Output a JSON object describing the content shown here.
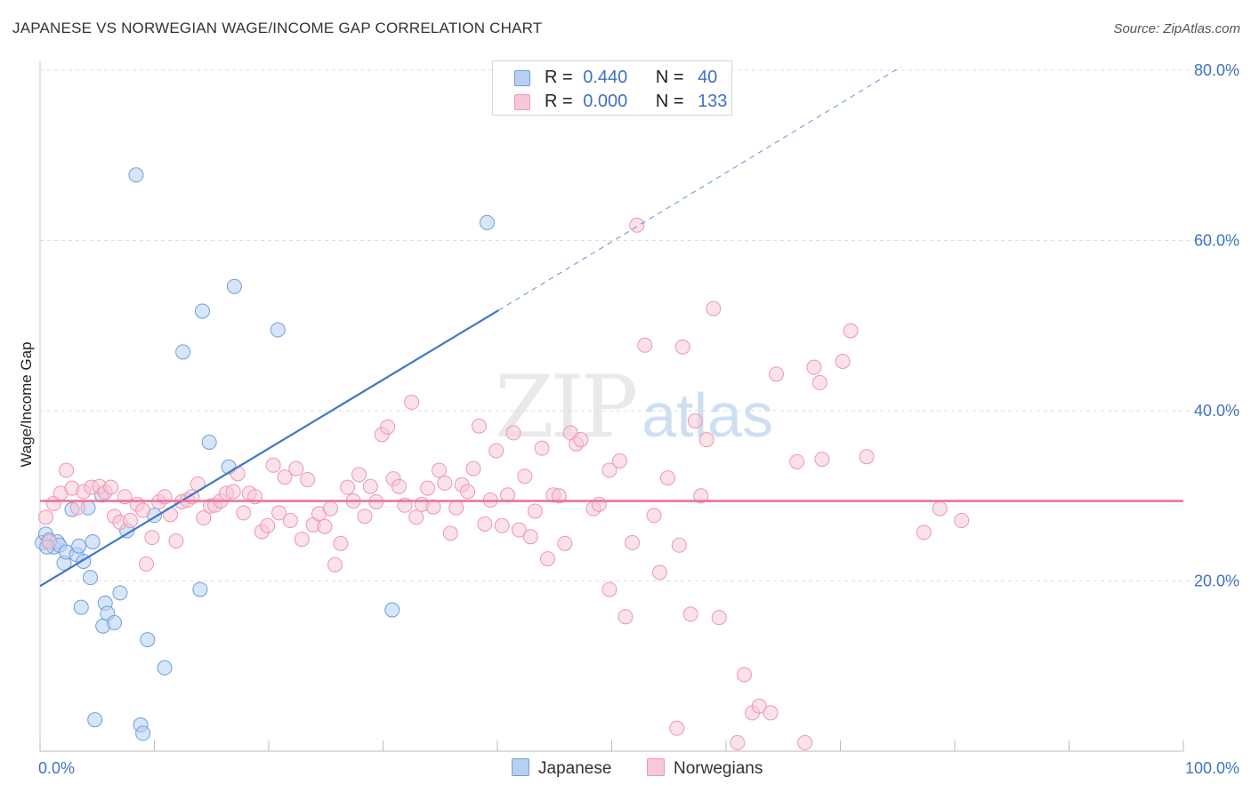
{
  "title": "JAPANESE VS NORWEGIAN WAGE/INCOME GAP CORRELATION CHART",
  "source": "Source: ZipAtlas.com",
  "watermark": {
    "zip": "ZIP",
    "atlas": "atlas"
  },
  "colors": {
    "japanese_fill": "#b7d0f2",
    "japanese_stroke": "#6f9edb",
    "japanese_line": "#3a78cc",
    "norwegian_fill": "#f8c8d6",
    "norwegian_stroke": "#ec97b2",
    "norwegian_line": "#e8709a",
    "axis_label": "#3f72c4",
    "grid": "#dddddd"
  },
  "legend_top": [
    {
      "r_label": "R =",
      "r_value": "0.440",
      "n_label": "N =",
      "n_value": "40",
      "series": "japanese"
    },
    {
      "r_label": "R =",
      "r_value": "0.000",
      "n_label": "N =",
      "n_value": "133",
      "series": "norwegian"
    }
  ],
  "legend_bottom": [
    {
      "label": "Japanese"
    },
    {
      "label": "Norwegians"
    }
  ],
  "chart_data": {
    "type": "scatter",
    "title": "JAPANESE VS NORWEGIAN WAGE/INCOME GAP CORRELATION CHART",
    "xlabel": "",
    "ylabel": "Wage/Income Gap",
    "xlim": [
      0,
      100
    ],
    "ylim": [
      0,
      80
    ],
    "x_tick_labels": [
      "0.0%",
      "100.0%"
    ],
    "y_ticks": [
      20,
      40,
      60,
      80
    ],
    "y_tick_labels": [
      "20.0%",
      "40.0%",
      "60.0%",
      "80.0%"
    ],
    "grid": true,
    "series": [
      {
        "name": "Japanese",
        "stats": {
          "R": 0.44,
          "N": 40
        },
        "trend": {
          "x0": 0,
          "y0": 19.4,
          "x1": 40.1,
          "y1": 51.8,
          "dashed_to_x": 75.3,
          "dashed_to_y": 80.4
        },
        "points": [
          [
            0.2,
            24.5
          ],
          [
            0.5,
            25.5
          ],
          [
            0.8,
            24.8
          ],
          [
            1.2,
            24.0
          ],
          [
            1.5,
            24.6
          ],
          [
            1.7,
            24.2
          ],
          [
            2.1,
            22.1
          ],
          [
            2.3,
            23.4
          ],
          [
            2.8,
            28.4
          ],
          [
            3.2,
            23.1
          ],
          [
            3.4,
            24.1
          ],
          [
            3.6,
            16.9
          ],
          [
            3.8,
            22.3
          ],
          [
            4.2,
            28.6
          ],
          [
            4.4,
            20.4
          ],
          [
            4.6,
            24.6
          ],
          [
            4.8,
            3.7
          ],
          [
            5.4,
            30.1
          ],
          [
            5.5,
            14.7
          ],
          [
            5.7,
            17.4
          ],
          [
            5.9,
            16.2
          ],
          [
            6.5,
            15.1
          ],
          [
            7.0,
            18.6
          ],
          [
            7.6,
            25.9
          ],
          [
            8.4,
            67.7
          ],
          [
            8.8,
            3.1
          ],
          [
            9.0,
            2.1
          ],
          [
            9.4,
            13.1
          ],
          [
            10.0,
            27.7
          ],
          [
            10.9,
            9.8
          ],
          [
            12.5,
            46.9
          ],
          [
            14.0,
            19.0
          ],
          [
            14.2,
            51.7
          ],
          [
            14.8,
            36.3
          ],
          [
            16.5,
            33.4
          ],
          [
            17.0,
            54.6
          ],
          [
            20.8,
            49.5
          ],
          [
            30.8,
            16.6
          ],
          [
            39.1,
            62.1
          ],
          [
            0.6,
            24.0
          ]
        ]
      },
      {
        "name": "Norwegians",
        "stats": {
          "R": 0.0,
          "N": 133
        },
        "trend": {
          "x0": 0,
          "y0": 29.4,
          "x1": 100,
          "y1": 29.4
        },
        "points": [
          [
            0.5,
            27.5
          ],
          [
            0.8,
            24.6
          ],
          [
            1.2,
            29.1
          ],
          [
            1.8,
            30.3
          ],
          [
            2.3,
            33.0
          ],
          [
            2.8,
            30.9
          ],
          [
            3.3,
            28.6
          ],
          [
            3.8,
            30.5
          ],
          [
            4.5,
            31.0
          ],
          [
            5.2,
            31.1
          ],
          [
            5.7,
            30.4
          ],
          [
            6.2,
            31.0
          ],
          [
            6.5,
            27.6
          ],
          [
            7.0,
            26.9
          ],
          [
            7.4,
            29.9
          ],
          [
            7.9,
            27.1
          ],
          [
            8.5,
            29.0
          ],
          [
            9.0,
            28.3
          ],
          [
            9.3,
            22.0
          ],
          [
            9.8,
            25.1
          ],
          [
            10.4,
            29.3
          ],
          [
            10.9,
            29.9
          ],
          [
            11.4,
            27.8
          ],
          [
            11.9,
            24.7
          ],
          [
            12.4,
            29.3
          ],
          [
            12.9,
            29.5
          ],
          [
            13.3,
            29.9
          ],
          [
            13.8,
            31.4
          ],
          [
            14.3,
            27.4
          ],
          [
            14.9,
            28.8
          ],
          [
            15.3,
            28.9
          ],
          [
            15.8,
            29.4
          ],
          [
            16.3,
            30.3
          ],
          [
            16.9,
            30.5
          ],
          [
            17.3,
            32.6
          ],
          [
            17.8,
            28.0
          ],
          [
            18.3,
            30.3
          ],
          [
            18.8,
            29.9
          ],
          [
            19.4,
            25.8
          ],
          [
            19.9,
            26.5
          ],
          [
            20.4,
            33.6
          ],
          [
            20.9,
            28.0
          ],
          [
            21.4,
            32.2
          ],
          [
            21.9,
            27.1
          ],
          [
            22.4,
            33.2
          ],
          [
            22.9,
            24.9
          ],
          [
            23.4,
            31.9
          ],
          [
            23.9,
            26.6
          ],
          [
            24.4,
            27.9
          ],
          [
            24.9,
            26.4
          ],
          [
            25.4,
            28.5
          ],
          [
            25.8,
            21.9
          ],
          [
            26.3,
            24.4
          ],
          [
            26.9,
            31.0
          ],
          [
            27.4,
            29.4
          ],
          [
            27.9,
            32.5
          ],
          [
            28.4,
            27.6
          ],
          [
            28.9,
            31.1
          ],
          [
            29.4,
            29.3
          ],
          [
            29.9,
            37.2
          ],
          [
            30.4,
            38.1
          ],
          [
            30.9,
            32.0
          ],
          [
            31.4,
            31.1
          ],
          [
            31.9,
            28.9
          ],
          [
            32.5,
            41.0
          ],
          [
            32.9,
            27.5
          ],
          [
            33.4,
            29.0
          ],
          [
            33.9,
            30.9
          ],
          [
            34.4,
            28.7
          ],
          [
            34.9,
            33.0
          ],
          [
            35.4,
            31.5
          ],
          [
            35.9,
            25.6
          ],
          [
            36.4,
            28.6
          ],
          [
            36.9,
            31.3
          ],
          [
            37.4,
            30.5
          ],
          [
            37.9,
            33.2
          ],
          [
            38.4,
            38.2
          ],
          [
            38.9,
            26.7
          ],
          [
            39.4,
            29.5
          ],
          [
            39.9,
            35.3
          ],
          [
            40.4,
            26.5
          ],
          [
            40.9,
            30.1
          ],
          [
            41.4,
            37.4
          ],
          [
            41.9,
            26.0
          ],
          [
            42.4,
            32.3
          ],
          [
            42.9,
            25.2
          ],
          [
            43.3,
            28.2
          ],
          [
            43.9,
            35.6
          ],
          [
            44.4,
            22.6
          ],
          [
            44.9,
            30.1
          ],
          [
            45.4,
            30.0
          ],
          [
            45.9,
            24.4
          ],
          [
            46.4,
            37.4
          ],
          [
            46.9,
            36.1
          ],
          [
            47.3,
            36.6
          ],
          [
            48.4,
            28.5
          ],
          [
            48.9,
            29.0
          ],
          [
            49.8,
            33.0
          ],
          [
            49.8,
            19.0
          ],
          [
            50.7,
            34.1
          ],
          [
            51.2,
            15.8
          ],
          [
            51.8,
            24.5
          ],
          [
            52.2,
            61.8
          ],
          [
            52.9,
            47.7
          ],
          [
            53.7,
            27.7
          ],
          [
            54.2,
            21.0
          ],
          [
            54.9,
            32.1
          ],
          [
            55.7,
            2.7
          ],
          [
            55.9,
            24.2
          ],
          [
            56.2,
            47.5
          ],
          [
            56.9,
            16.1
          ],
          [
            57.3,
            38.8
          ],
          [
            57.8,
            30.0
          ],
          [
            58.3,
            36.6
          ],
          [
            58.9,
            52.0
          ],
          [
            59.4,
            15.7
          ],
          [
            61.0,
            1.0
          ],
          [
            61.6,
            9.0
          ],
          [
            62.3,
            4.5
          ],
          [
            62.9,
            5.3
          ],
          [
            63.9,
            4.5
          ],
          [
            64.4,
            44.3
          ],
          [
            66.2,
            34.0
          ],
          [
            66.9,
            1.0
          ],
          [
            67.7,
            45.1
          ],
          [
            68.2,
            43.3
          ],
          [
            68.4,
            34.3
          ],
          [
            70.2,
            45.8
          ],
          [
            70.9,
            49.4
          ],
          [
            72.3,
            34.6
          ],
          [
            77.3,
            25.7
          ],
          [
            78.7,
            28.5
          ],
          [
            80.6,
            27.1
          ]
        ]
      }
    ]
  }
}
